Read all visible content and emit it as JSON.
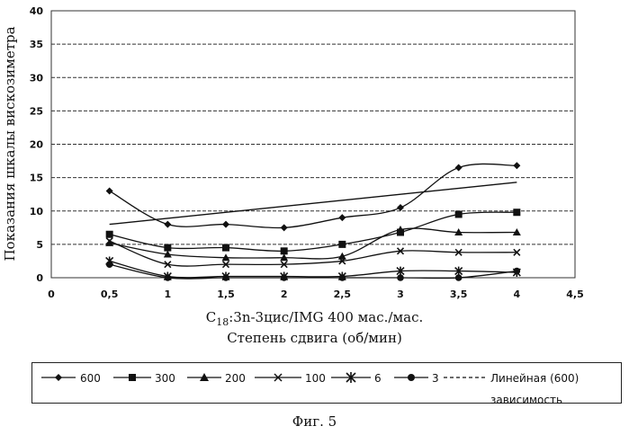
{
  "chart_data": {
    "type": "line",
    "ylabel": "Показания шкалы вискозиметра",
    "xlabel_line1_prefix": "C",
    "xlabel_line1_sub": "18",
    "xlabel_line1_rest": ":3n-3цис/IMG 400 мас./мас.",
    "xlabel_line2": "Степень сдвига (об/мин)",
    "xlim": [
      0,
      4.5
    ],
    "ylim": [
      0,
      40
    ],
    "x_ticks": [
      "0",
      "0,5",
      "1",
      "1,5",
      "2",
      "2,5",
      "3",
      "3,5",
      "4",
      "4,5"
    ],
    "y_ticks": [
      "0",
      "5",
      "10",
      "15",
      "20",
      "25",
      "30",
      "35",
      "40"
    ],
    "x_tick_values": [
      0,
      0.5,
      1,
      1.5,
      2,
      2.5,
      3,
      3.5,
      4,
      4.5
    ],
    "y_tick_values": [
      0,
      5,
      10,
      15,
      20,
      25,
      30,
      35,
      40
    ],
    "grid": "horizontal dashed",
    "x": [
      0.5,
      1,
      1.5,
      2,
      2.5,
      3,
      3.5,
      4
    ],
    "series": [
      {
        "name": "600",
        "marker": "diamond",
        "values": [
          13,
          8,
          8,
          7.5,
          9,
          10.5,
          16.5,
          16.8
        ]
      },
      {
        "name": "300",
        "marker": "square",
        "values": [
          6.5,
          4.5,
          4.5,
          4,
          5,
          6.8,
          9.5,
          9.8
        ]
      },
      {
        "name": "200",
        "marker": "triangle",
        "values": [
          5.2,
          3.5,
          3,
          3,
          3.2,
          7.2,
          6.8,
          6.8
        ]
      },
      {
        "name": "100",
        "marker": "x",
        "values": [
          5.5,
          2,
          2,
          2,
          2.5,
          4,
          3.8,
          3.8
        ]
      },
      {
        "name": "6",
        "marker": "asterisk",
        "values": [
          2.5,
          0.2,
          0.2,
          0.2,
          0.2,
          1,
          1,
          0.8
        ]
      },
      {
        "name": "3",
        "marker": "circle",
        "values": [
          2,
          0,
          0,
          0,
          0,
          0,
          0,
          1
        ]
      }
    ],
    "trendline": {
      "name_line1": "Линейная (600)",
      "name_line2": "зависимость",
      "x": [
        0.5,
        4
      ],
      "values": [
        8,
        14.3
      ]
    },
    "legend_position": "bottom"
  },
  "caption": "Фиг. 5"
}
